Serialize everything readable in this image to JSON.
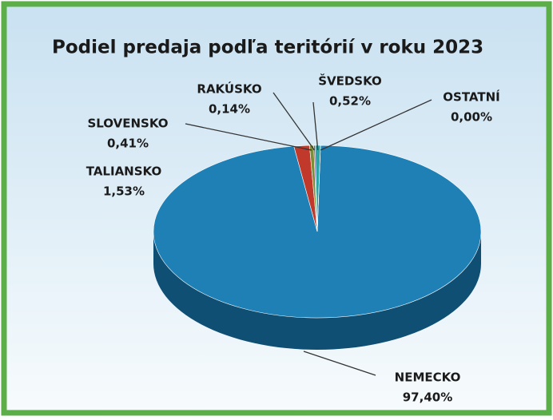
{
  "chart_data": {
    "type": "pie",
    "title": "Podiel predaja podľa teritórií v roku 2023",
    "categories": [
      "NEMECKO",
      "TALIANSKO",
      "SLOVENSKO",
      "RAKÚSKO",
      "ŠVEDSKO",
      "OSTATNÍ"
    ],
    "values": [
      97.4,
      1.53,
      0.41,
      0.14,
      0.52,
      0.0
    ],
    "value_labels": [
      "97,40%",
      "1,53%",
      "0,41%",
      "0,14%",
      "0,52%",
      "0,00%"
    ],
    "colors": [
      "#1f80b6",
      "#c0392b",
      "#7d8f35",
      "#6f4a94",
      "#2aa5a8",
      "#e67e22"
    ]
  }
}
